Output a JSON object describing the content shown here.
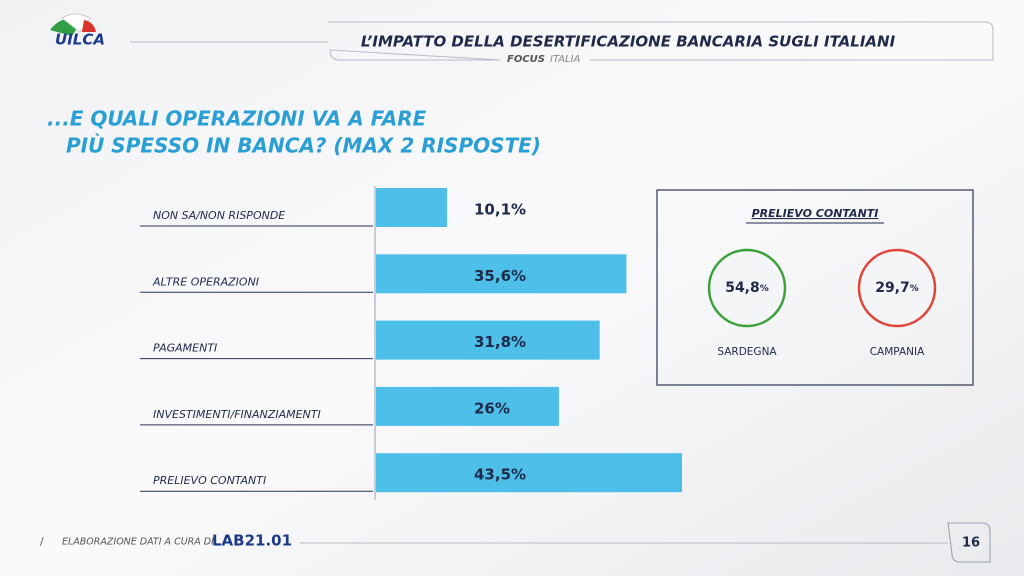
{
  "header": {
    "logo": "UILCA",
    "title": "L’IMPATTO DELLA DESERTIFICAZIONE BANCARIA SUGLI ITALIANI",
    "focus": "FOCUS",
    "focus_area": "ITALIA"
  },
  "chart_data": {
    "type": "hbar",
    "title_lines": [
      "...E QUALI OPERAZIONI VA A FARE",
      "PIÙ SPESSO IN BANCA? (MAX 2 RISPOSTE)"
    ],
    "categories": [
      "NON SA/NON RISPONDE",
      "ALTRE OPERAZIONI",
      "PAGAMENTI",
      "INVESTIMENTI/FINANZIAMENTI",
      "PRELIEVO CONTANTI"
    ],
    "values": [
      10.1,
      35.6,
      31.8,
      26,
      43.5
    ],
    "value_labels": [
      "10,1%",
      "35,6%",
      "31,8%",
      "26%",
      "43,5%"
    ],
    "color": "#4dbfe9"
  },
  "side_panel": {
    "title": "PRELIEVO CONTANTI",
    "items": [
      {
        "name": "SARDEGNA",
        "value": 54.8,
        "label": "54,8",
        "unit": "%",
        "color": "#3aa23a"
      },
      {
        "name": "CAMPANIA",
        "value": 29.7,
        "label": "29,7",
        "unit": "%",
        "color": "#e0443a"
      }
    ]
  },
  "footer": {
    "credit": "ELABORAZIONE DATI A CURA DI",
    "lab": "LAB21.01",
    "page": "16"
  }
}
